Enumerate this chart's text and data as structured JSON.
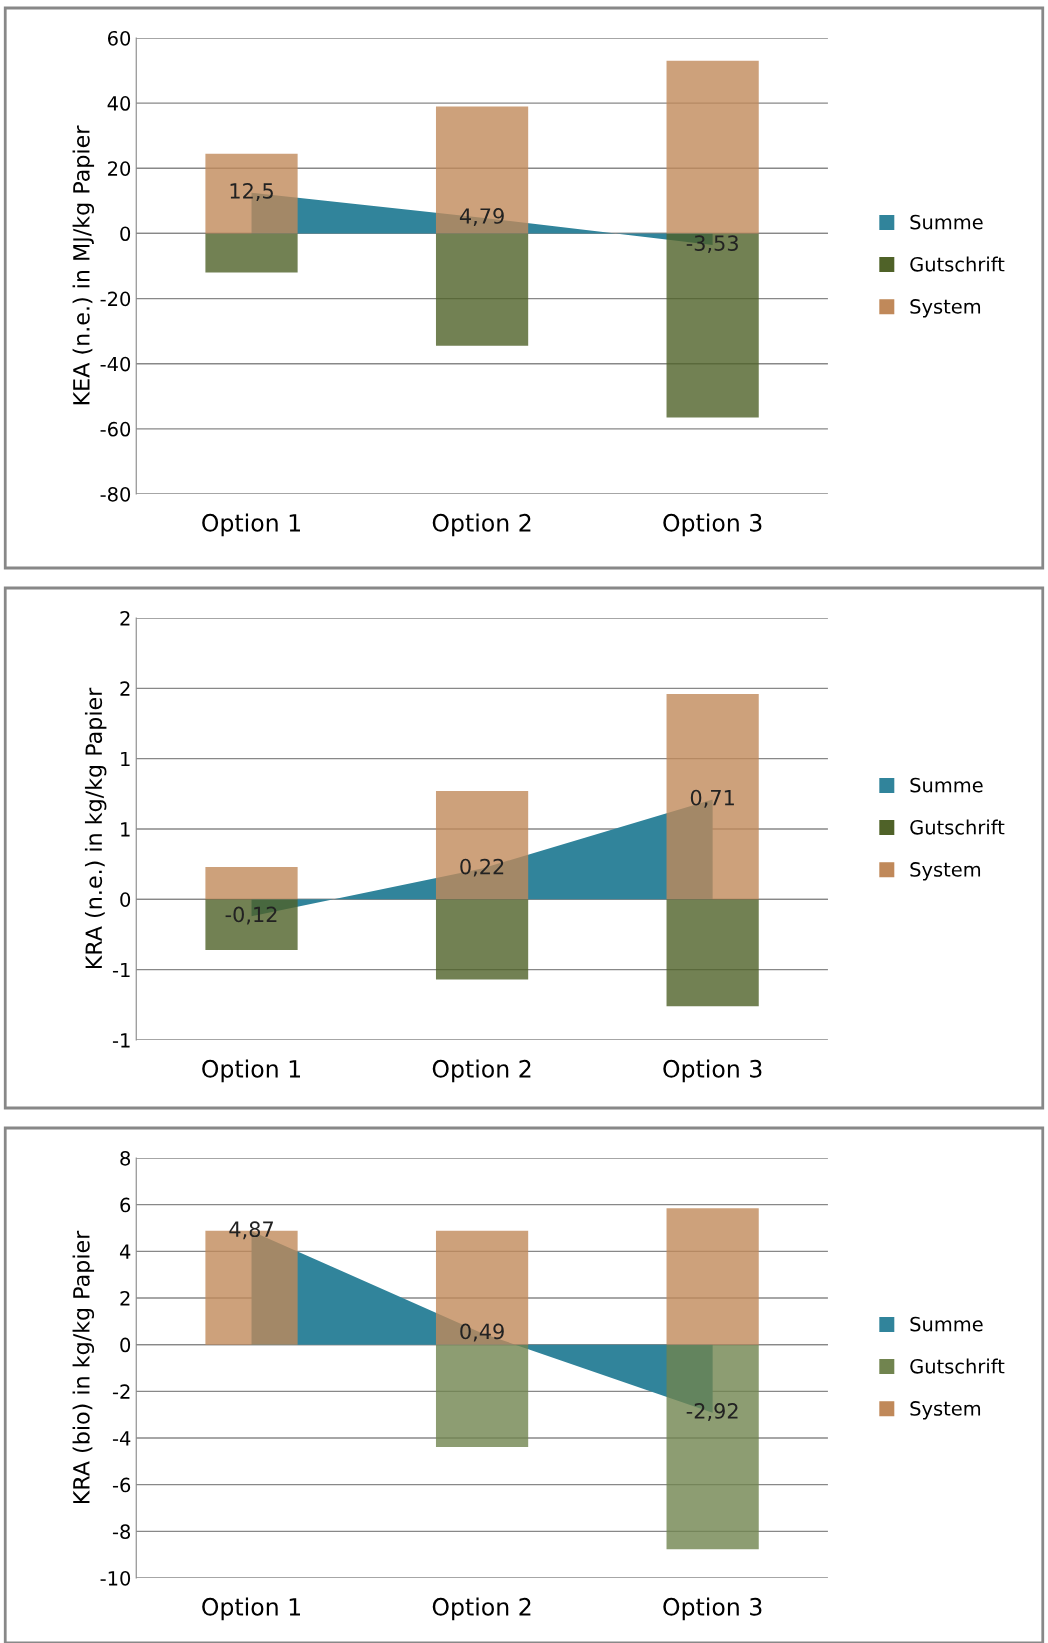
{
  "chart_data": [
    {
      "type": "bar",
      "ylabel": "KEA (n.e.) in MJ/kg Papier",
      "categories": [
        "Option 1",
        "Option 2",
        "Option 3"
      ],
      "ylim": [
        -80,
        60
      ],
      "yticks": [
        -80,
        -60,
        -40,
        -20,
        0,
        20,
        40,
        60
      ],
      "grid": "y",
      "legend": "right",
      "series": [
        {
          "name": "Summe",
          "type": "area",
          "color": "#31849b",
          "values": [
            12.5,
            4.79,
            -3.53
          ],
          "value_labels": [
            "12,5",
            "4,79",
            "-3,53"
          ]
        },
        {
          "name": "Gutschrift",
          "color": "#4f6228",
          "values": [
            -12,
            -34.5,
            -56.5
          ]
        },
        {
          "name": "System",
          "color": "#c0895a",
          "values": [
            24.5,
            39,
            53
          ]
        }
      ]
    },
    {
      "type": "bar",
      "ylabel": "KRA (n.e.) in kg/kg Papier",
      "categories": [
        "Option 1",
        "Option 2",
        "Option 3"
      ],
      "ylim": [
        -1,
        2
      ],
      "yticks": [
        {
          "value": -1,
          "label": "-1"
        },
        {
          "value": -0.5,
          "label": "-1"
        },
        0,
        {
          "value": 0.5,
          "label": "1"
        },
        {
          "value": 1,
          "label": "1"
        },
        {
          "value": 1.5,
          "label": "2"
        },
        {
          "value": 2,
          "label": "2"
        }
      ],
      "grid": "y",
      "legend": "right",
      "series": [
        {
          "name": "Summe",
          "type": "area",
          "color": "#31849b",
          "values": [
            -0.12,
            0.22,
            0.71
          ],
          "value_labels": [
            "-0,12",
            "0,22",
            "0,71"
          ]
        },
        {
          "name": "Gutschrift",
          "color": "#4f6228",
          "values": [
            -0.36,
            -0.57,
            -0.76
          ]
        },
        {
          "name": "System",
          "color": "#c0895a",
          "values": [
            0.23,
            0.77,
            1.46
          ]
        }
      ]
    },
    {
      "type": "bar",
      "ylabel": "KRA (bio) in kg/kg Papier",
      "categories": [
        "Option 1",
        "Option 2",
        "Option 3"
      ],
      "ylim": [
        -10,
        8
      ],
      "yticks": [
        -10,
        -8,
        -6,
        -4,
        -2,
        0,
        2,
        4,
        6,
        8
      ],
      "grid": "y",
      "legend": "right",
      "series": [
        {
          "name": "Summe",
          "type": "area",
          "color": "#31849b",
          "values": [
            4.87,
            0.49,
            -2.92
          ],
          "value_labels": [
            "4,87",
            "0,49",
            "-2,92"
          ]
        },
        {
          "name": "Gutschrift",
          "color": "#71844f",
          "values": [
            0,
            -4.39,
            -8.77
          ]
        },
        {
          "name": "System",
          "color": "#c0895a",
          "values": [
            4.88,
            4.88,
            5.85
          ]
        }
      ]
    }
  ]
}
